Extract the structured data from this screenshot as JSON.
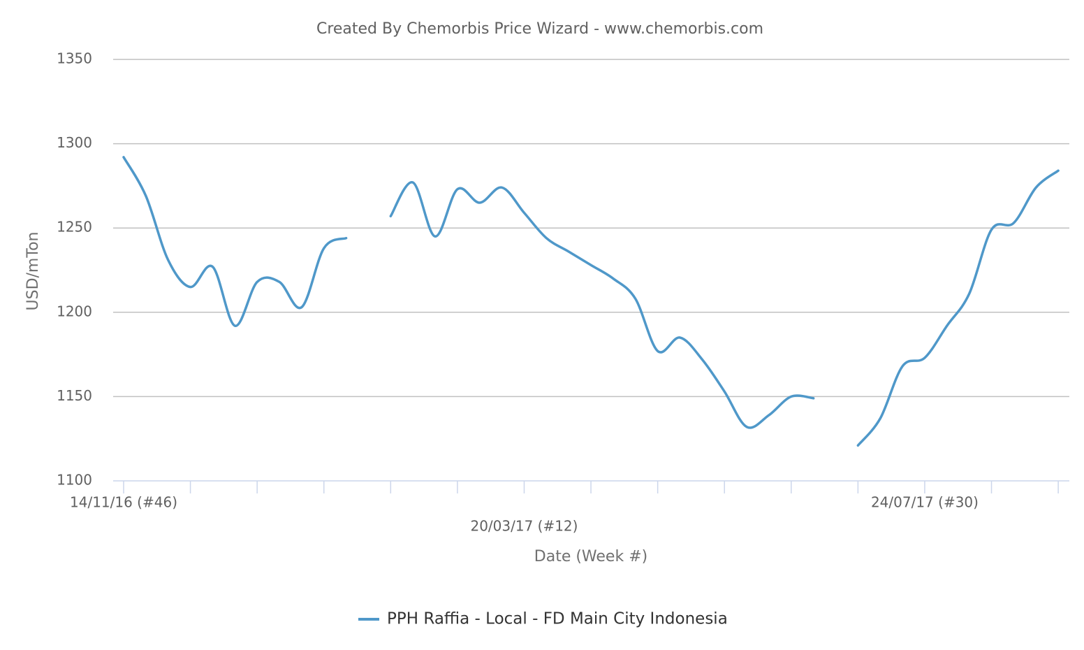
{
  "chart_data": {
    "type": "line",
    "title": "Created By Chemorbis Price Wizard - www.chemorbis.com",
    "x_label": "Date (Week #)",
    "y_label": "USD/mTon",
    "categories": [
      "14/11/16 (#46)",
      null,
      null,
      null,
      null,
      null,
      null,
      null,
      null,
      null,
      null,
      null,
      null,
      null,
      null,
      null,
      null,
      null,
      "20/03/17 (#12)",
      null,
      null,
      null,
      null,
      null,
      null,
      null,
      null,
      null,
      null,
      null,
      null,
      null,
      null,
      null,
      null,
      null,
      "24/07/17 (#30)",
      null,
      null,
      null,
      null,
      null,
      null
    ],
    "series": [
      {
        "name": "PPH Raffia - Local - FD Main City Indonesia",
        "color": "#4f98c9",
        "values": [
          1292,
          1269,
          1231,
          1215,
          1227,
          1192,
          1218,
          1218,
          1203,
          1238,
          1244,
          null,
          1257,
          1277,
          1245,
          1273,
          1265,
          1274,
          1259,
          1244,
          1236,
          1228,
          1220,
          1208,
          1177,
          1185,
          1172,
          1153,
          1132,
          1139,
          1150,
          1149,
          null,
          1121,
          1137,
          1168,
          1173,
          1192,
          1211,
          1249,
          1253,
          1274,
          1284
        ]
      }
    ],
    "ylim": [
      1100,
      1350
    ],
    "yticks": [
      1100,
      1150,
      1200,
      1250,
      1300,
      1350
    ],
    "grid": true
  }
}
